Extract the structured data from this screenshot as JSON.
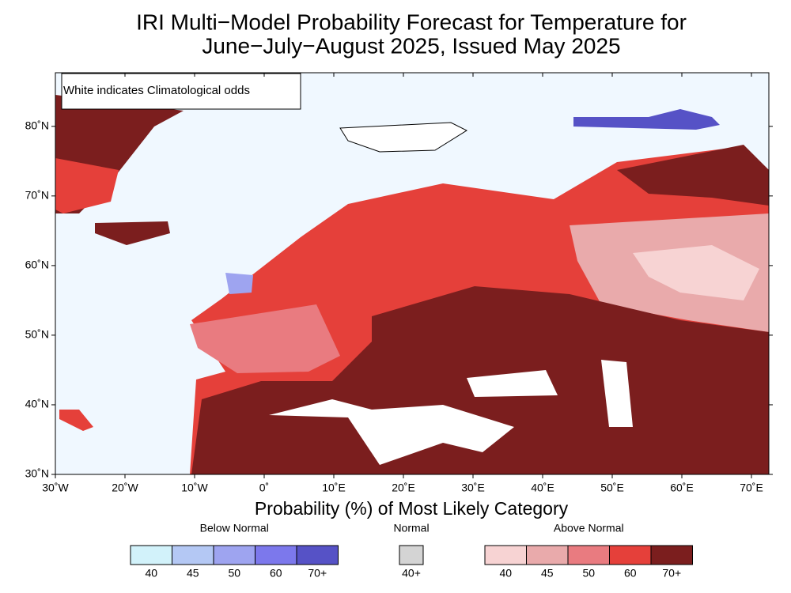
{
  "title": [
    "IRI Multi−Model Probability Forecast for Temperature for",
    "June−July−August 2025, Issued May 2025"
  ],
  "note": "White indicates Climatological odds",
  "map": {
    "xlim": [
      -30,
      72.5
    ],
    "ylim": [
      30,
      87.7
    ],
    "xticks": [
      {
        "value": -30,
        "label": "30˚W"
      },
      {
        "value": -20,
        "label": "20˚W"
      },
      {
        "value": -10,
        "label": "10˚W"
      },
      {
        "value": 0,
        "label": "0˚"
      },
      {
        "value": 10,
        "label": "10˚E"
      },
      {
        "value": 20,
        "label": "20˚E"
      },
      {
        "value": 30,
        "label": "30˚E"
      },
      {
        "value": 40,
        "label": "40˚E"
      },
      {
        "value": 50,
        "label": "50˚E"
      },
      {
        "value": 60,
        "label": "60˚E"
      },
      {
        "value": 70,
        "label": "70˚E"
      }
    ],
    "yticks": [
      {
        "value": 30,
        "label": "30˚N"
      },
      {
        "value": 40,
        "label": "40˚N"
      },
      {
        "value": 50,
        "label": "50˚N"
      },
      {
        "value": 60,
        "label": "60˚N"
      },
      {
        "value": 70,
        "label": "70˚N"
      },
      {
        "value": 80,
        "label": "80˚N"
      }
    ]
  },
  "legend": {
    "title": "Probability (%) of Most Likely Category",
    "groups": [
      {
        "name": "Below Normal",
        "bins": [
          {
            "label": "40",
            "color": "#d2f2fa"
          },
          {
            "label": "45",
            "color": "#b4c8f4"
          },
          {
            "label": "50",
            "color": "#9ea4f0"
          },
          {
            "label": "60",
            "color": "#7c78ec"
          },
          {
            "label": "70+",
            "color": "#5652c6"
          }
        ]
      },
      {
        "name": "Normal",
        "bins": [
          {
            "label": "40+",
            "color": "#d4d4d4"
          }
        ]
      },
      {
        "name": "Above Normal",
        "bins": [
          {
            "label": "40",
            "color": "#f7d3d3"
          },
          {
            "label": "45",
            "color": "#e9aaab"
          },
          {
            "label": "50",
            "color": "#e97b80"
          },
          {
            "label": "60",
            "color": "#e5403a"
          },
          {
            "label": "70+",
            "color": "#7b1e1e"
          }
        ]
      }
    ]
  }
}
